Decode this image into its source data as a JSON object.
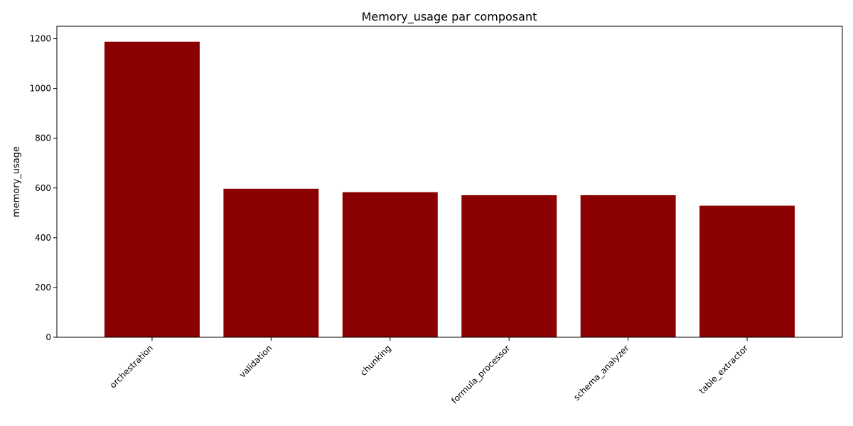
{
  "chart_data": {
    "type": "bar",
    "title": "Memory_usage par composant",
    "xlabel": "",
    "ylabel": "memory_usage",
    "categories": [
      "orchestration",
      "validation",
      "chunking",
      "formula_processor",
      "schema_analyzer",
      "table_extractor"
    ],
    "values": [
      1188,
      597,
      583,
      571,
      571,
      529
    ],
    "ylim": [
      0,
      1250
    ],
    "yticks": [
      0,
      200,
      400,
      600,
      800,
      1000,
      1200
    ],
    "bar_color": "#8b0000",
    "grid": false,
    "legend": "none"
  }
}
